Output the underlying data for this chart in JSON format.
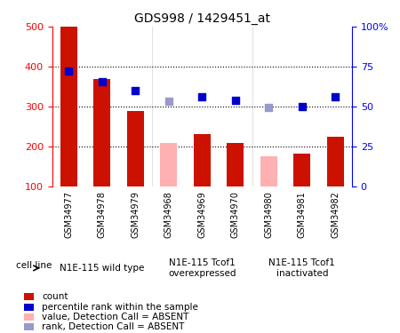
{
  "title": "GDS998 / 1429451_at",
  "samples": [
    "GSM34977",
    "GSM34978",
    "GSM34979",
    "GSM34968",
    "GSM34969",
    "GSM34970",
    "GSM34980",
    "GSM34981",
    "GSM34982"
  ],
  "count_values": [
    500,
    370,
    289,
    null,
    232,
    208,
    null,
    183,
    225
  ],
  "count_absent_values": [
    null,
    null,
    null,
    210,
    null,
    null,
    175,
    null,
    null
  ],
  "rank_values": [
    388,
    362,
    340,
    null,
    325,
    315,
    null,
    300,
    325
  ],
  "rank_absent_values": [
    null,
    null,
    null,
    313,
    null,
    null,
    298,
    null,
    null
  ],
  "ylim_left": [
    100,
    500
  ],
  "ylim_right": [
    0,
    100
  ],
  "yticks_left": [
    100,
    200,
    300,
    400,
    500
  ],
  "yticks_right": [
    0,
    25,
    50,
    75,
    100
  ],
  "ytick_labels_right": [
    "0",
    "25",
    "50",
    "75",
    "100%"
  ],
  "bar_color": "#cc1100",
  "bar_absent_color": "#ffb0b0",
  "rank_color": "#0000cc",
  "rank_absent_color": "#9999cc",
  "bar_width": 0.5,
  "cell_line_label": "cell line",
  "dotted_grid_values": [
    200,
    300,
    400
  ],
  "rank_marker_size": 40,
  "legend_items": [
    {
      "label": "count",
      "color": "#cc1100"
    },
    {
      "label": "percentile rank within the sample",
      "color": "#0000cc"
    },
    {
      "label": "value, Detection Call = ABSENT",
      "color": "#ffb0b0"
    },
    {
      "label": "rank, Detection Call = ABSENT",
      "color": "#9999cc"
    }
  ],
  "group_defs": [
    {
      "start": 0,
      "end": 2,
      "label": "N1E-115 wild type"
    },
    {
      "start": 3,
      "end": 5,
      "label": "N1E-115 Tcof1\noverexpressed"
    },
    {
      "start": 6,
      "end": 8,
      "label": "N1E-115 Tcof1\ninactivated"
    }
  ],
  "xticklabel_color": "#333333",
  "gray_bg": "#d8d8d8",
  "green_bg": "#99ee99"
}
